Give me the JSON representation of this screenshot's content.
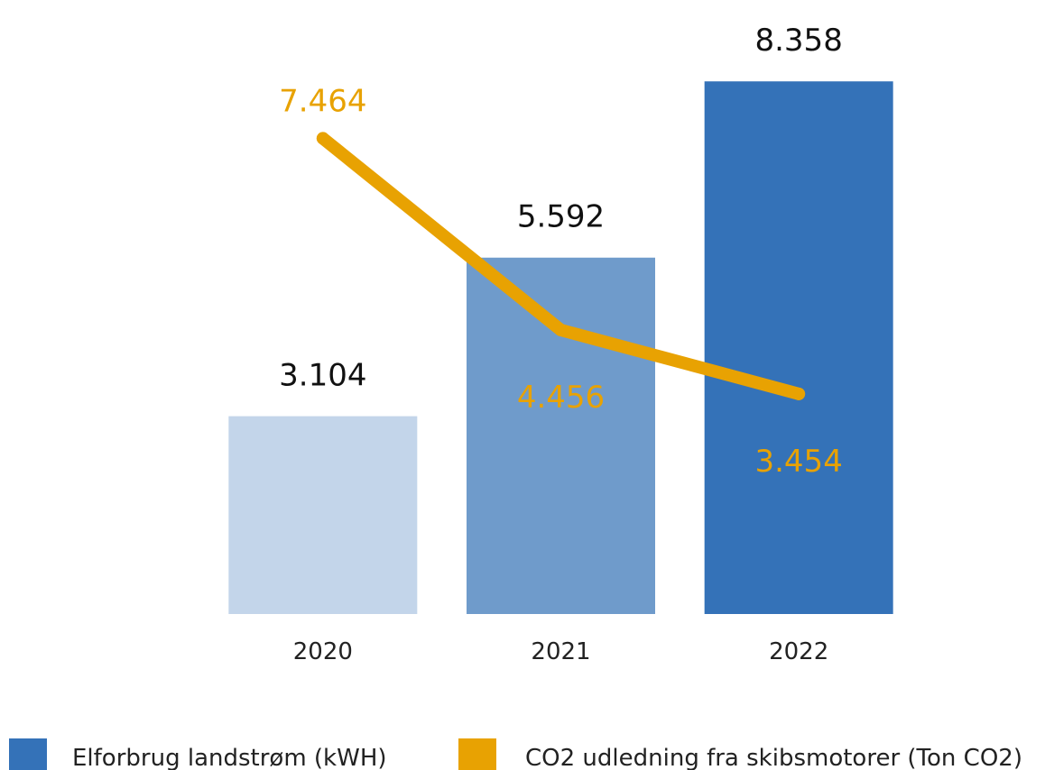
{
  "chart_data": {
    "type": "bar",
    "categories": [
      "2020",
      "2021",
      "2022"
    ],
    "series": [
      {
        "name": "Elforbrug landstrøm (kWH)",
        "type": "bar",
        "values": [
          3104,
          5592,
          8358
        ],
        "labels": [
          "3.104",
          "5.592",
          "8.358"
        ],
        "colors": [
          "#c3d5ea",
          "#6f9bcb",
          "#3472b8"
        ],
        "legend_color": "#3472b8"
      },
      {
        "name": "CO2 udledning fra skibsmotorer (Ton CO2)",
        "type": "line",
        "values": [
          7464,
          4456,
          3454
        ],
        "labels": [
          "7.464",
          "4.456",
          "3.454"
        ],
        "color": "#e8a202"
      }
    ],
    "ylim": [
      0,
      8800
    ],
    "grid": false,
    "legend": "bottom"
  }
}
